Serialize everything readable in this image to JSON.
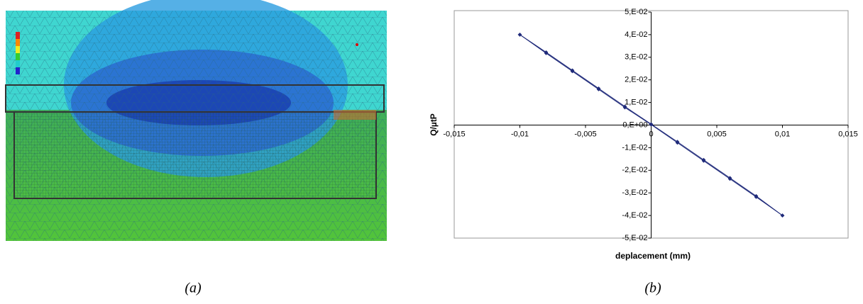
{
  "captions": [
    "(a)",
    "(b)"
  ],
  "chart_data": {
    "type": "line",
    "markers": true,
    "x_label": "deplacement (mm)",
    "y_label": "Q/µtP",
    "x": [
      -0.01,
      -0.008,
      -0.006,
      -0.004,
      -0.002,
      0,
      0.002,
      0.004,
      0.006,
      0.008,
      0.01
    ],
    "series": [
      {
        "color": "#1f2a7a",
        "values": [
          0.04,
          0.0318,
          0.0238,
          0.0158,
          0.0078,
          0.0002,
          -0.0078,
          -0.0158,
          -0.0238,
          -0.0318,
          -0.04
        ]
      },
      {
        "color": "#1f2a7a",
        "values": [
          0.04,
          0.0322,
          0.0242,
          0.0162,
          0.0082,
          0.0004,
          -0.0074,
          -0.0154,
          -0.0234,
          -0.0314,
          -0.04
        ]
      }
    ],
    "xlim": [
      -0.015,
      0.015
    ],
    "xticks": [
      {
        "value": -0.015,
        "label": "-0,015"
      },
      {
        "value": -0.01,
        "label": "-0,01"
      },
      {
        "value": -0.005,
        "label": "-0,005"
      },
      0,
      {
        "value": 0.005,
        "label": "0,005"
      },
      {
        "value": 0.01,
        "label": "0,01"
      },
      {
        "value": 0.015,
        "label": "0,015"
      }
    ],
    "ylim": [
      -0.05,
      0.05
    ],
    "yticks": [
      {
        "value": 0.05,
        "label": "5,E-02"
      },
      {
        "value": 0.04,
        "label": "4,E-02"
      },
      {
        "value": 0.03,
        "label": "3,E-02"
      },
      {
        "value": 0.02,
        "label": "2,E-02"
      },
      {
        "value": 0.01,
        "label": "1,E-02"
      },
      {
        "value": 0,
        "label": "0,E+00"
      },
      {
        "value": -0.01,
        "label": "-1,E-02"
      },
      {
        "value": -0.02,
        "label": "-2,E-02"
      },
      {
        "value": -0.03,
        "label": "-3,E-02"
      },
      {
        "value": -0.04,
        "label": "-4,E-02"
      },
      {
        "value": -0.05,
        "label": "-5,E-02"
      }
    ],
    "grid": false
  }
}
